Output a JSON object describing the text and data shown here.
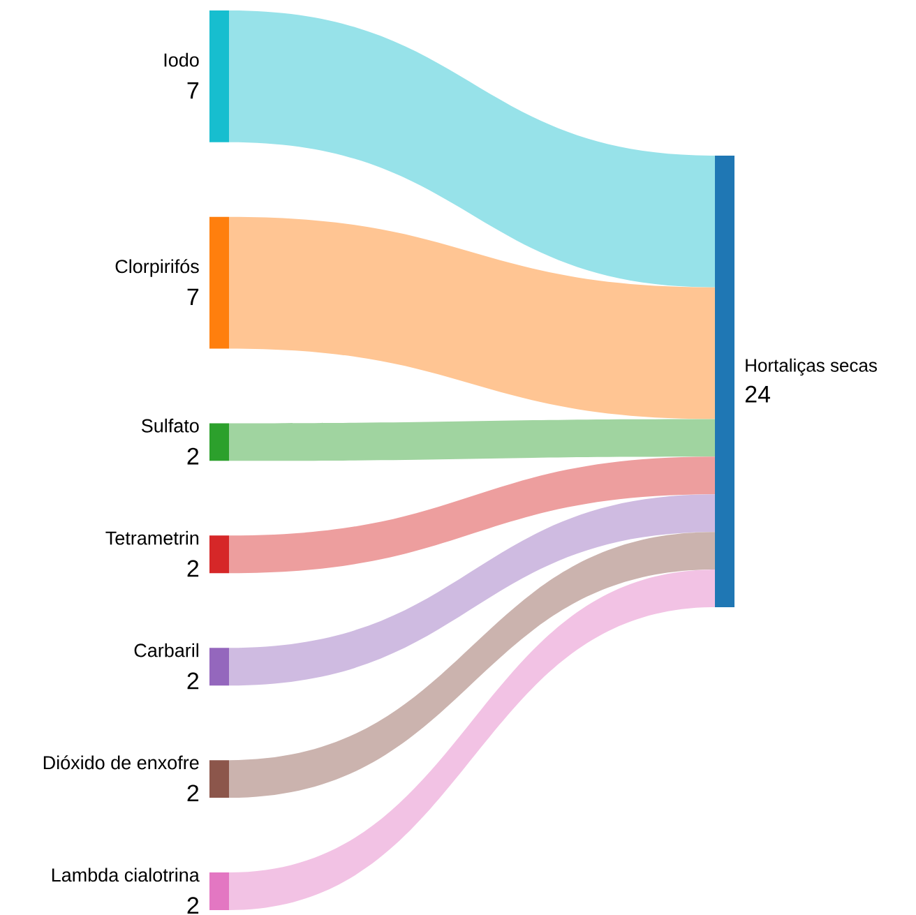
{
  "chart_data": {
    "type": "other",
    "categories": [
      "Iodo",
      "Clorpirifós",
      "Sulfato",
      "Tetrametrin",
      "Carbaril",
      "Dióxido de enxofre",
      "Lambda cialotrina",
      "Hortaliças secas"
    ],
    "values": [
      7,
      7,
      2,
      2,
      2,
      2,
      2,
      24
    ],
    "colors": [
      "#17becf",
      "#ff7f0e",
      "#2ca02c",
      "#d62728",
      "#9467bd",
      "#8c564b",
      "#e377c2",
      "#1f77b4"
    ],
    "data_labels": true
  }
}
